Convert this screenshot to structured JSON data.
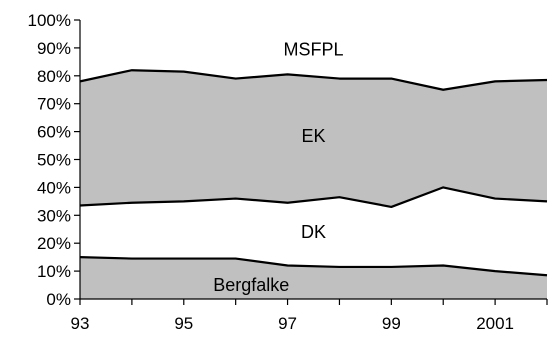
{
  "chart_data": {
    "type": "area",
    "x_ticks": [
      "93",
      "95",
      "97",
      "99",
      "2001"
    ],
    "x": [
      1993,
      1994,
      1995,
      1996,
      1997,
      1998,
      1999,
      2000,
      2001,
      2002
    ],
    "xlim": [
      1993,
      2002
    ],
    "ylim": [
      0,
      100
    ],
    "y_ticks": [
      "0%",
      "10%",
      "20%",
      "30%",
      "40%",
      "50%",
      "60%",
      "70%",
      "80%",
      "90%",
      "100%"
    ],
    "grid": false,
    "colors": {
      "shaded": "#c0c0c0",
      "unshaded": "#ffffff",
      "line": "#000000"
    },
    "series": [
      {
        "name": "Bergfalke",
        "values": [
          15,
          14.5,
          14.5,
          14.5,
          12,
          11.5,
          11.5,
          12,
          10,
          8.5
        ],
        "shaded": true
      },
      {
        "name": "DK",
        "values": [
          18.5,
          20,
          20.5,
          21.5,
          22.5,
          25,
          21.5,
          28,
          26,
          26.5
        ],
        "shaded": false
      },
      {
        "name": "EK",
        "values": [
          44.5,
          47.5,
          46.5,
          43,
          46,
          42.5,
          46,
          35,
          42,
          43.5
        ],
        "shaded": true
      },
      {
        "name": "MSFPL",
        "values": [
          22,
          18,
          18.5,
          21,
          19.5,
          21,
          21,
          25,
          22,
          21.5
        ],
        "shaded": false
      }
    ],
    "region_labels": [
      {
        "series": "MSFPL",
        "text": "MSFPL",
        "x": 1997.5,
        "y": 89.5
      },
      {
        "series": "EK",
        "text": "EK",
        "x": 1997.5,
        "y": 58.5
      },
      {
        "series": "DK",
        "text": "DK",
        "x": 1997.5,
        "y": 24
      },
      {
        "series": "Bergfalke",
        "text": "Bergfalke",
        "x": 1996.3,
        "y": 5
      }
    ]
  }
}
